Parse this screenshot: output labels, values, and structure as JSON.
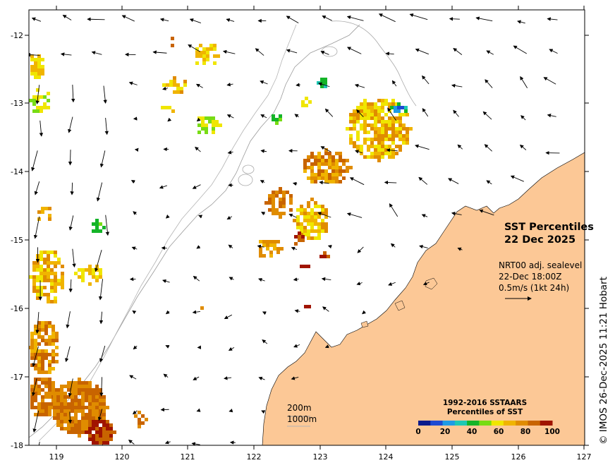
{
  "map": {
    "x_ticks": [
      "119",
      "120",
      "121",
      "122",
      "123",
      "124",
      "125",
      "126",
      "127"
    ],
    "y_ticks": [
      "-12",
      "-13",
      "-14",
      "-15",
      "-16",
      "-17",
      "-18"
    ],
    "land_color": "#fcc896",
    "sea_color": "#ffffff"
  },
  "title": {
    "line1": "SST Percentiles",
    "line2": "22 Dec 2025"
  },
  "vectors": {
    "line1": "NRT00 adj. sealevel",
    "line2": "22-Dec 18:00Z",
    "line3": "0.5m/s (1kt 24h)"
  },
  "contours": {
    "label_200": "200m",
    "label_1000": "1000m"
  },
  "legend": {
    "title_line1": "1992-2016 SSTAARS",
    "title_line2": "Percentiles of SST",
    "ticks": [
      "0",
      "20",
      "40",
      "60",
      "80",
      "100"
    ],
    "colors": [
      "#0a1a8c",
      "#1e4bd2",
      "#1e9be6",
      "#1ec8b4",
      "#14b428",
      "#78dc14",
      "#f0e600",
      "#f0b400",
      "#e08c00",
      "#c86400",
      "#a01400"
    ]
  },
  "credit": "© IMOS 26-Dec-2025 11:21 Hobart"
}
